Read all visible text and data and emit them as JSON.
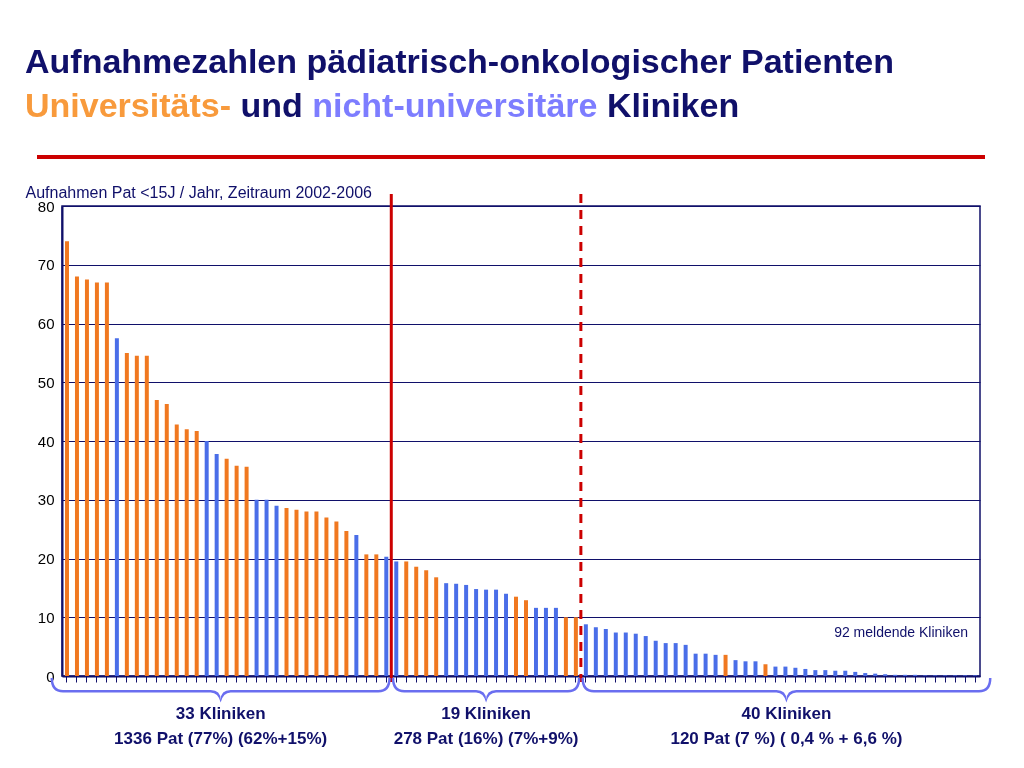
{
  "chart_data": {
    "type": "bar",
    "title": "Aufnahmezahlen pädiatrisch-onkologischer Patienten",
    "subtitle": "Universitäts- und nicht-universitäre Kliniken",
    "ylabel": "Aufnahmen Pat <15J / Jahr, Zeitraum 2002-2006",
    "categories": [
      null,
      null,
      null,
      null,
      null,
      null,
      null,
      null,
      null,
      null,
      null,
      null,
      null,
      null,
      null,
      null,
      null,
      null,
      null,
      null,
      null,
      null,
      null,
      null,
      null,
      null,
      null,
      null,
      null,
      null,
      null,
      null,
      null,
      null,
      null,
      null,
      null,
      null,
      null,
      null,
      null,
      null,
      null,
      null,
      null,
      null,
      null,
      null,
      null,
      null,
      null,
      null,
      null,
      null,
      null,
      null,
      null,
      null,
      null,
      null,
      null,
      null,
      null,
      null,
      null,
      null,
      null,
      null,
      null,
      null,
      null,
      null,
      null,
      null,
      null,
      null,
      null,
      null,
      null,
      null,
      null,
      null,
      null,
      null,
      null,
      null,
      null,
      null,
      null,
      null,
      null,
      null
    ],
    "values": [
      74,
      68,
      67.5,
      67,
      67,
      57.5,
      55,
      54.5,
      54.5,
      47,
      46.3,
      42.8,
      42,
      41.7,
      40,
      37.8,
      37,
      35.8,
      35.6,
      30,
      30,
      29,
      28.6,
      28.3,
      28,
      28,
      27,
      26.3,
      24.7,
      24,
      20.7,
      20.7,
      20.3,
      19.5,
      19.5,
      18.6,
      18,
      16.8,
      15.8,
      15.7,
      15.5,
      14.8,
      14.7,
      14.7,
      14,
      13.5,
      12.9,
      11.6,
      11.6,
      11.6,
      10,
      10,
      8.8,
      8.3,
      8,
      7.4,
      7.4,
      7.2,
      6.8,
      6,
      5.6,
      5.6,
      5.3,
      3.8,
      3.8,
      3.6,
      3.6,
      2.7,
      2.5,
      2.5,
      2,
      1.6,
      1.6,
      1.4,
      1.2,
      1,
      1,
      0.9,
      0.9,
      0.7,
      0.5,
      0.4,
      0.3,
      0.2,
      0.2,
      0.2,
      0.1,
      0.1,
      0.1,
      0.1,
      0.1,
      0.1
    ],
    "colors": [
      "#f07820",
      "#f07820",
      "#f07820",
      "#f07820",
      "#f07820",
      "#4a6ee8",
      "#f07820",
      "#f07820",
      "#f07820",
      "#f07820",
      "#f07820",
      "#f07820",
      "#f07820",
      "#f07820",
      "#4a6ee8",
      "#4a6ee8",
      "#f07820",
      "#f07820",
      "#f07820",
      "#4a6ee8",
      "#4a6ee8",
      "#4a6ee8",
      "#f07820",
      "#f07820",
      "#f07820",
      "#f07820",
      "#f07820",
      "#f07820",
      "#f07820",
      "#4a6ee8",
      "#f07820",
      "#f07820",
      "#4a6ee8",
      "#4a6ee8",
      "#f07820",
      "#f07820",
      "#f07820",
      "#f07820",
      "#4a6ee8",
      "#4a6ee8",
      "#4a6ee8",
      "#4a6ee8",
      "#4a6ee8",
      "#4a6ee8",
      "#4a6ee8",
      "#f07820",
      "#f07820",
      "#4a6ee8",
      "#4a6ee8",
      "#4a6ee8",
      "#f07820",
      "#f07820",
      "#4a6ee8",
      "#4a6ee8",
      "#4a6ee8",
      "#4a6ee8",
      "#4a6ee8",
      "#4a6ee8",
      "#4a6ee8",
      "#4a6ee8",
      "#4a6ee8",
      "#4a6ee8",
      "#4a6ee8",
      "#4a6ee8",
      "#4a6ee8",
      "#4a6ee8",
      "#f07820",
      "#4a6ee8",
      "#4a6ee8",
      "#4a6ee8",
      "#f07820",
      "#4a6ee8",
      "#4a6ee8",
      "#4a6ee8",
      "#4a6ee8",
      "#4a6ee8",
      "#4a6ee8",
      "#4a6ee8",
      "#4a6ee8",
      "#4a6ee8",
      "#4a6ee8",
      "#4a6ee8",
      "#4a6ee8",
      "#4a6ee8",
      "#4a6ee8",
      "#4a6ee8",
      "#4a6ee8",
      "#4a6ee8",
      "#4a6ee8",
      "#4a6ee8",
      "#4a6ee8",
      "#4a6ee8"
    ],
    "ylim": [
      0,
      80
    ],
    "yticks": [
      0,
      10,
      20,
      30,
      40,
      50,
      60,
      70,
      80
    ],
    "grid": "y",
    "tick_labels": "y",
    "annotations": [
      "92 meldende Kliniken",
      "33 Kliniken",
      "1336 Pat (77%) (62%+15%)",
      "19 Kliniken",
      "278 Pat (16%) (7%+9%)",
      "40 Kliniken",
      "120 Pat (7 %) ( 0,4 % + 6,6 %)"
    ]
  }
}
